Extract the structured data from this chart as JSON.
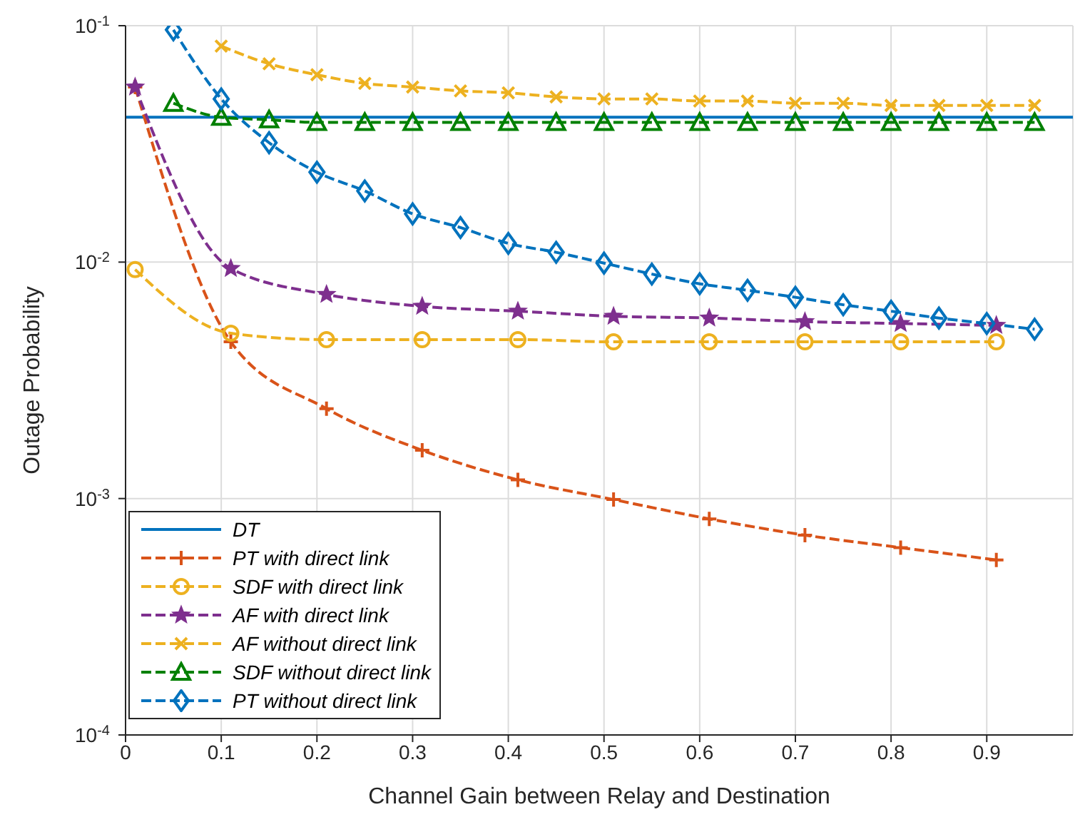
{
  "chart_data": {
    "type": "line",
    "xlabel": "Channel Gain between Relay and Destination",
    "ylabel": "Outage Probability",
    "log": "y",
    "grid": true,
    "legend": "bottom left",
    "xlim": [
      0,
      0.99
    ],
    "xticks": [
      0,
      0.1,
      0.2,
      0.3,
      0.4,
      0.5,
      0.6,
      0.7,
      0.8,
      0.9
    ],
    "ylim": [
      0.0001,
      0.1
    ],
    "yticks": [
      {
        "value": 0.0001,
        "label": "10$^{-4}$"
      },
      {
        "value": 0.001,
        "label": "10$^{-3}$"
      },
      {
        "value": 0.01,
        "label": "10$^{-2}$"
      },
      {
        "value": 0.1,
        "label": "10$^{-1}$"
      }
    ],
    "series": [
      {
        "name": "DT",
        "color": "#0072bd",
        "line_style": "solid",
        "marker": "none",
        "x": [
          0,
          0.99
        ],
        "values": [
          0.041,
          0.041
        ]
      },
      {
        "name": "PT with direct link",
        "color": "#d95319",
        "line_style": "dashed",
        "marker": "plus",
        "x": [
          0.01,
          0.11,
          0.21,
          0.31,
          0.41,
          0.51,
          0.61,
          0.71,
          0.81,
          0.91
        ],
        "values": [
          0.055,
          0.0046,
          0.0024,
          0.0016,
          0.0012,
          0.00099,
          0.00082,
          0.0007,
          0.00062,
          0.00055
        ]
      },
      {
        "name": "SDF with direct link",
        "color": "#edb120",
        "line_style": "dashed",
        "marker": "circle",
        "x": [
          0.01,
          0.11,
          0.21,
          0.31,
          0.41,
          0.51,
          0.61,
          0.71,
          0.81,
          0.91
        ],
        "values": [
          0.0093,
          0.005,
          0.0047,
          0.0047,
          0.0047,
          0.0046,
          0.0046,
          0.0046,
          0.0046,
          0.0046
        ]
      },
      {
        "name": "AF with direct link",
        "color": "#7e2f8e",
        "line_style": "dashed",
        "marker": "star",
        "x": [
          0.01,
          0.11,
          0.21,
          0.31,
          0.41,
          0.51,
          0.61,
          0.71,
          0.81,
          0.91
        ],
        "values": [
          0.055,
          0.0094,
          0.0073,
          0.0065,
          0.0062,
          0.0059,
          0.0058,
          0.0056,
          0.0055,
          0.0054
        ]
      },
      {
        "name": "AF without direct link",
        "color": "#edb120",
        "line_style": "dashed",
        "marker": "cross",
        "x": [
          0.1,
          0.15,
          0.2,
          0.25,
          0.3,
          0.35,
          0.4,
          0.45,
          0.5,
          0.55,
          0.6,
          0.65,
          0.7,
          0.75,
          0.8,
          0.85,
          0.9,
          0.95
        ],
        "values": [
          0.082,
          0.069,
          0.062,
          0.057,
          0.055,
          0.053,
          0.052,
          0.05,
          0.049,
          0.049,
          0.048,
          0.048,
          0.047,
          0.047,
          0.046,
          0.046,
          0.046,
          0.046
        ]
      },
      {
        "name": "SDF without direct link",
        "color": "#008000",
        "line_style": "dashed",
        "marker": "triangle",
        "x": [
          0.05,
          0.1,
          0.15,
          0.2,
          0.25,
          0.3,
          0.35,
          0.4,
          0.45,
          0.5,
          0.55,
          0.6,
          0.65,
          0.7,
          0.75,
          0.8,
          0.85,
          0.9,
          0.95
        ],
        "values": [
          0.047,
          0.041,
          0.04,
          0.039,
          0.039,
          0.039,
          0.039,
          0.039,
          0.039,
          0.039,
          0.039,
          0.039,
          0.039,
          0.039,
          0.039,
          0.039,
          0.039,
          0.039,
          0.039
        ]
      },
      {
        "name": "PT without direct link",
        "color": "#0072bd",
        "line_style": "dashed",
        "marker": "diamond",
        "x": [
          0.05,
          0.1,
          0.15,
          0.2,
          0.25,
          0.3,
          0.35,
          0.4,
          0.45,
          0.5,
          0.55,
          0.6,
          0.65,
          0.7,
          0.75,
          0.8,
          0.85,
          0.9,
          0.95
        ],
        "values": [
          0.096,
          0.049,
          0.032,
          0.024,
          0.02,
          0.016,
          0.014,
          0.012,
          0.011,
          0.0099,
          0.0089,
          0.0081,
          0.0076,
          0.0071,
          0.0066,
          0.0062,
          0.0058,
          0.0055,
          0.0052
        ]
      }
    ]
  }
}
